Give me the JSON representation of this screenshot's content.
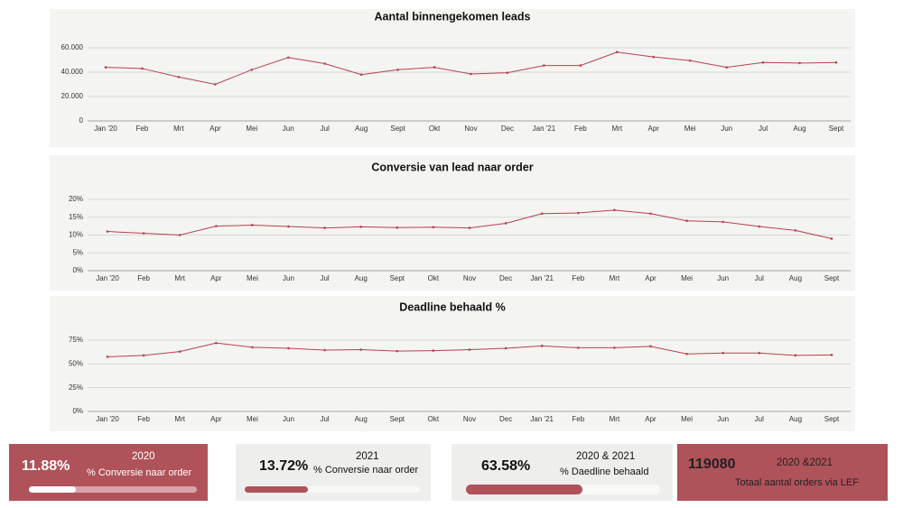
{
  "chart_data": [
    {
      "type": "line",
      "title": "Aantal binnengekomen leads",
      "categories": [
        "Jan '20",
        "Feb",
        "Mrt",
        "Apr",
        "Mei",
        "Jun",
        "Jul",
        "Aug",
        "Sept",
        "Okt",
        "Nov",
        "Dec",
        "Jan '21",
        "Feb",
        "Mrt",
        "Apr",
        "Mei",
        "Jun",
        "Jul",
        "Aug",
        "Sept"
      ],
      "values": [
        44000,
        43000,
        36000,
        30000,
        42000,
        52000,
        47000,
        38000,
        42000,
        44000,
        38500,
        39500,
        45500,
        45500,
        56500,
        52500,
        49500,
        44000,
        48000,
        47500,
        48000
      ],
      "color": "#b5414d",
      "ylim": [
        0,
        60000
      ],
      "yticks": [
        0,
        {
          "value": 20000,
          "label": "20.000"
        },
        {
          "value": 40000,
          "label": "40.000"
        },
        {
          "value": 60000,
          "label": "60.000"
        }
      ],
      "grid": true
    },
    {
      "type": "line",
      "title": "Conversie van lead naar order",
      "categories": [
        "Jan '20",
        "Feb",
        "Mrt",
        "Apr",
        "Mei",
        "Jun",
        "Jul",
        "Aug",
        "Sept",
        "Okt",
        "Nov",
        "Dec",
        "Jan '21",
        "Feb",
        "Mrt",
        "Apr",
        "Mei",
        "Jun",
        "Jul",
        "Aug",
        "Sept"
      ],
      "values": [
        11,
        10.5,
        10,
        12.5,
        12.8,
        12.4,
        12,
        12.3,
        12.1,
        12.2,
        12,
        13.3,
        16,
        16.2,
        17,
        16,
        14,
        13.7,
        12.4,
        11.3,
        9
      ],
      "color": "#b5414d",
      "ylim": [
        0,
        20
      ],
      "yticks": [
        {
          "value": 0,
          "label": "0%"
        },
        {
          "value": 5,
          "label": "5%"
        },
        {
          "value": 10,
          "label": "10%"
        },
        {
          "value": 15,
          "label": "15%"
        },
        {
          "value": 20,
          "label": "20%"
        }
      ],
      "grid": true
    },
    {
      "type": "line",
      "title": "Deadline behaald %",
      "categories": [
        "Jan '20",
        "Feb",
        "Mrt",
        "Apr",
        "Mei",
        "Jun",
        "Jul",
        "Aug",
        "Sept",
        "Okt",
        "Nov",
        "Dec",
        "Jan '21",
        "Feb",
        "Mrt",
        "Apr",
        "Mei",
        "Jun",
        "Jul",
        "Aug",
        "Sept"
      ],
      "values": [
        57.5,
        59,
        63,
        72,
        67.5,
        66.5,
        64.5,
        65,
        63.5,
        64,
        65,
        66.5,
        69,
        67,
        67,
        68.5,
        60.5,
        61.5,
        61.5,
        59,
        59.5
      ],
      "color": "#b5414d",
      "ylim": [
        0,
        75
      ],
      "yticks": [
        {
          "value": 0,
          "label": "0%"
        },
        {
          "value": 25,
          "label": "25%"
        },
        {
          "value": 50,
          "label": "50%"
        },
        {
          "value": 75,
          "label": "75%"
        }
      ],
      "grid": true
    }
  ],
  "cards": [
    {
      "value": "11.88%",
      "year": "2020",
      "label": "% Conversie naar order",
      "progress": 28
    },
    {
      "value": "13.72%",
      "year": "2021",
      "label": "% Conversie naar order",
      "progress": 36
    },
    {
      "value": "63.58%",
      "year": "2020 & 2021",
      "label": "% Daedline behaald",
      "progress": 60
    },
    {
      "value": "119080",
      "year": "2020 &2021",
      "label": "Totaal aantal orders via LEF"
    }
  ]
}
